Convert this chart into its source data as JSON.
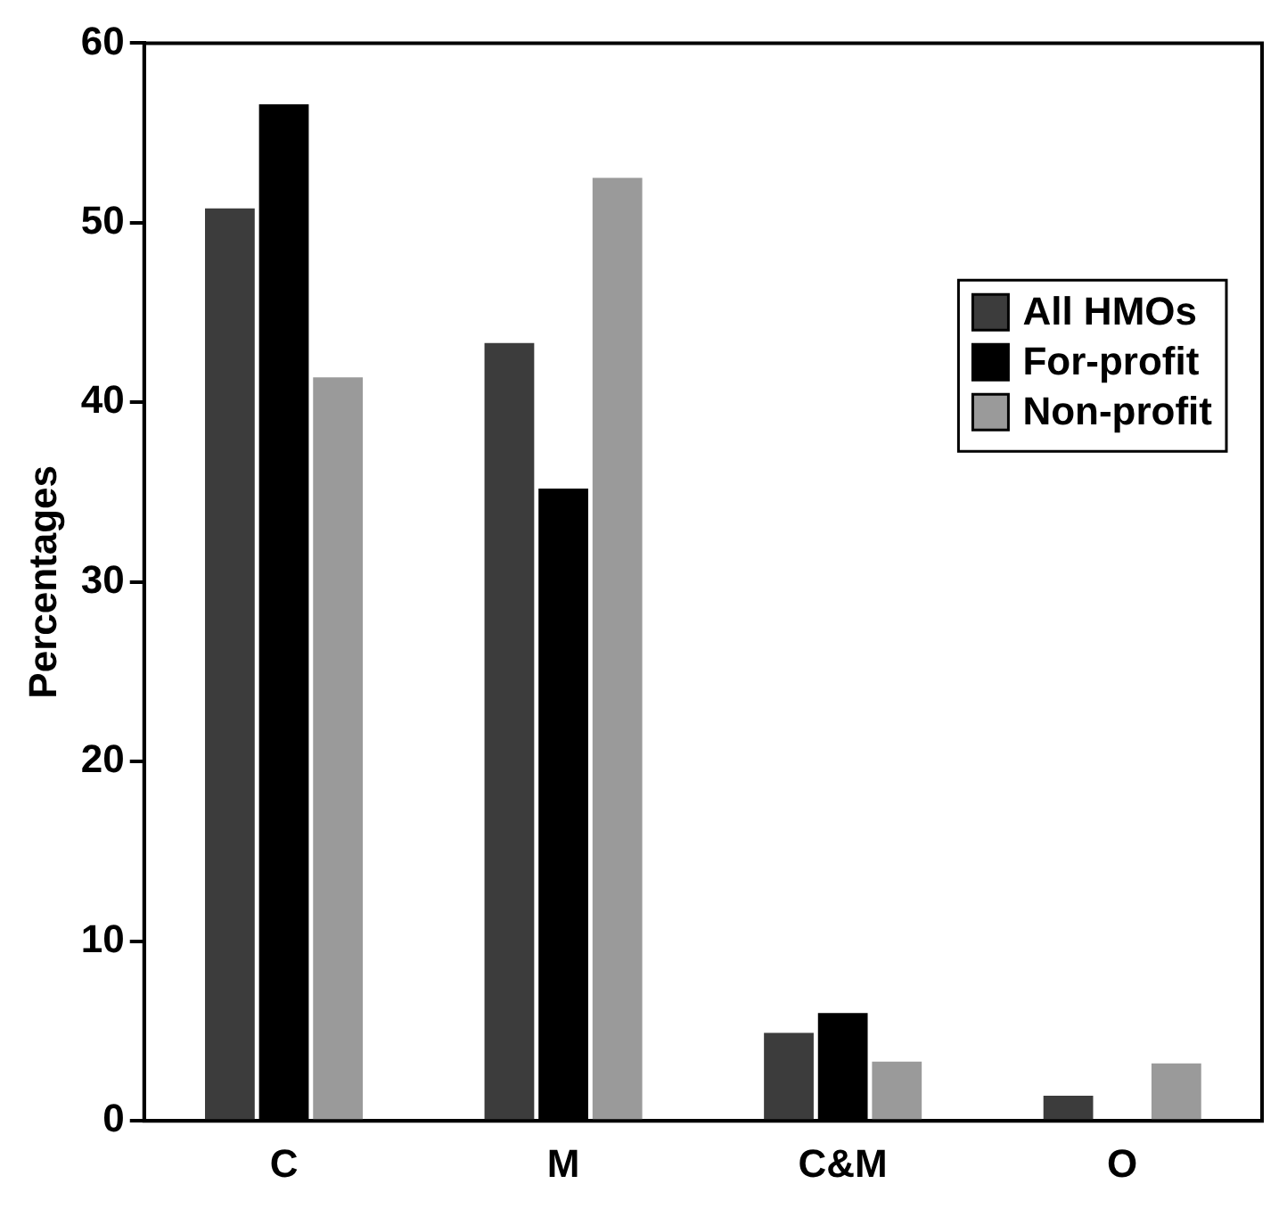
{
  "chart_data": {
    "type": "bar",
    "ylabel": "Percentages",
    "categories": [
      "C",
      "M",
      "C&M",
      "O"
    ],
    "series": [
      {
        "name": "All HMOs",
        "color": "#3c3c3c",
        "values": [
          50.8,
          43.3,
          4.9,
          1.4
        ]
      },
      {
        "name": "For-profit",
        "color": "#000000",
        "values": [
          56.6,
          35.2,
          6.0,
          0
        ]
      },
      {
        "name": "Non-profit",
        "color": "#9a9a9a",
        "values": [
          41.4,
          52.5,
          3.3,
          3.2
        ]
      }
    ],
    "ylim": [
      0,
      60
    ],
    "yticks": [
      0,
      10,
      20,
      30,
      40,
      50,
      60
    ],
    "grid": false,
    "legend": "right"
  }
}
